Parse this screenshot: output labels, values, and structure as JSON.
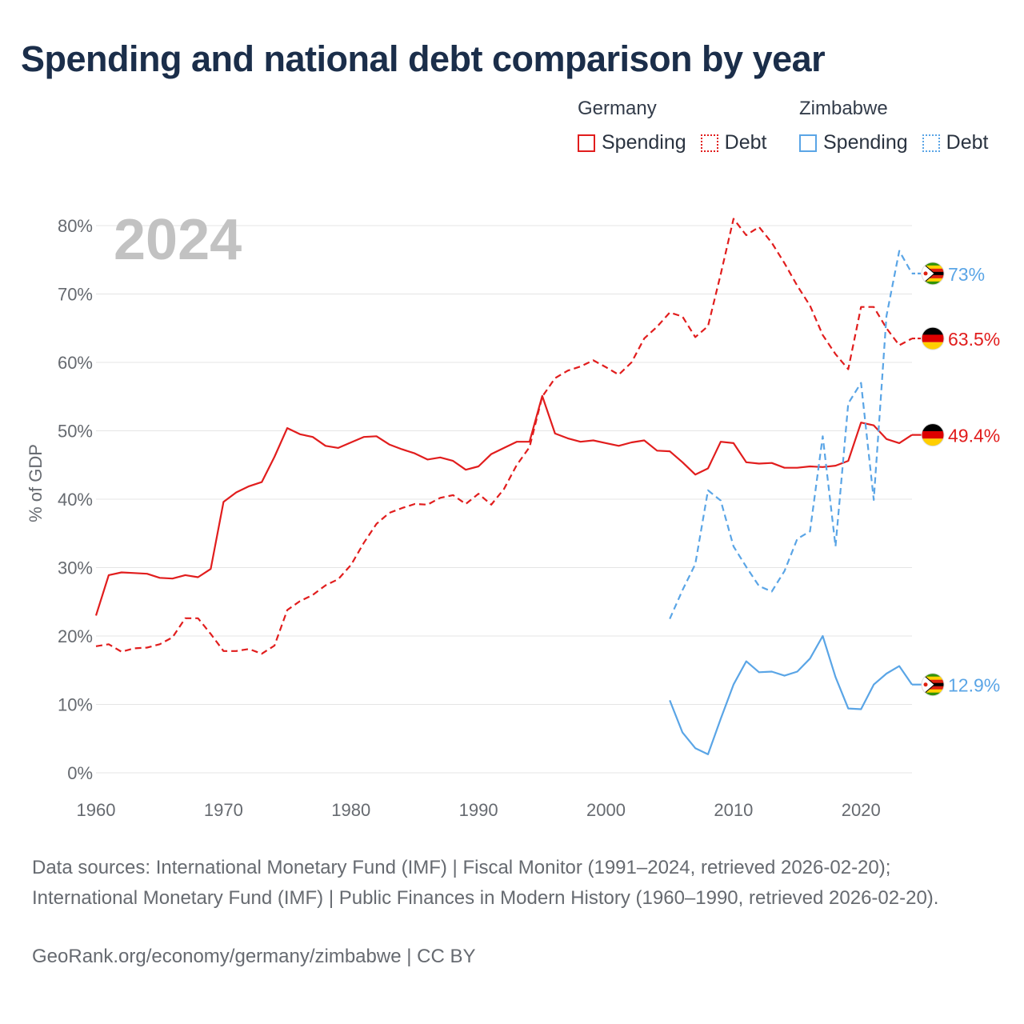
{
  "title": "Spending and national debt comparison by year",
  "legend": {
    "groups": [
      {
        "country": "Germany",
        "items": [
          {
            "label": "Spending",
            "style": "solid"
          },
          {
            "label": "Debt",
            "style": "dotted"
          }
        ],
        "color": "#e11d1d"
      },
      {
        "country": "Zimbabwe",
        "items": [
          {
            "label": "Spending",
            "style": "solid"
          },
          {
            "label": "Debt",
            "style": "dotted"
          }
        ],
        "color": "#5aa5e6"
      }
    ]
  },
  "sources": "Data sources: International Monetary Fund (IMF) | Fiscal Monitor (1991–2024, retrieved 2026-02-20); International Monetary Fund (IMF) | Public Finances in Modern History (1960–1990, retrieved 2026-02-20).",
  "credit": "GeoRank.org/economy/germany/zimbabwe | CC BY",
  "chart_data": {
    "type": "line",
    "year_label": "2024",
    "ylabel": "% of GDP",
    "xlim": [
      1960,
      2024
    ],
    "ylim": [
      0,
      80
    ],
    "x_ticks": [
      1960,
      1970,
      1980,
      1990,
      2000,
      2010,
      2020
    ],
    "y_ticks": [
      0,
      10,
      20,
      30,
      40,
      50,
      60,
      70,
      80
    ],
    "y_tick_labels": [
      "0%",
      "10%",
      "20%",
      "30%",
      "40%",
      "50%",
      "60%",
      "70%",
      "80%"
    ],
    "series": [
      {
        "name": "Germany Spending",
        "country": "Germany",
        "metric": "Spending",
        "color": "#e11d1d",
        "dash": "solid",
        "end_label": "49.4%",
        "flag": "germany",
        "x": [
          1960,
          1961,
          1962,
          1963,
          1964,
          1965,
          1966,
          1967,
          1968,
          1969,
          1970,
          1971,
          1972,
          1973,
          1974,
          1975,
          1976,
          1977,
          1978,
          1979,
          1980,
          1981,
          1982,
          1983,
          1984,
          1985,
          1986,
          1987,
          1988,
          1989,
          1990,
          1991,
          1992,
          1993,
          1994,
          1995,
          1996,
          1997,
          1998,
          1999,
          2000,
          2001,
          2002,
          2003,
          2004,
          2005,
          2006,
          2007,
          2008,
          2009,
          2010,
          2011,
          2012,
          2013,
          2014,
          2015,
          2016,
          2017,
          2018,
          2019,
          2020,
          2021,
          2022,
          2023,
          2024
        ],
        "values": [
          23.0,
          28.9,
          29.3,
          29.2,
          29.1,
          28.5,
          28.4,
          28.9,
          28.6,
          29.8,
          39.6,
          41.0,
          41.9,
          42.5,
          46.2,
          50.4,
          49.5,
          49.1,
          47.8,
          47.5,
          48.3,
          49.1,
          49.2,
          48.0,
          47.3,
          46.7,
          45.8,
          46.1,
          45.6,
          44.3,
          44.8,
          46.6,
          47.5,
          48.4,
          48.4,
          55.1,
          49.6,
          48.9,
          48.4,
          48.6,
          48.2,
          47.8,
          48.3,
          48.6,
          47.1,
          47.0,
          45.4,
          43.6,
          44.5,
          48.4,
          48.2,
          45.4,
          45.2,
          45.3,
          44.6,
          44.6,
          44.8,
          44.7,
          44.9,
          45.6,
          51.2,
          50.8,
          48.8,
          48.2,
          49.4
        ]
      },
      {
        "name": "Germany Debt",
        "country": "Germany",
        "metric": "Debt",
        "color": "#e11d1d",
        "dash": "dashed",
        "end_label": "63.5%",
        "flag": "germany",
        "x": [
          1960,
          1961,
          1962,
          1963,
          1964,
          1965,
          1966,
          1967,
          1968,
          1969,
          1970,
          1971,
          1972,
          1973,
          1974,
          1975,
          1976,
          1977,
          1978,
          1979,
          1980,
          1981,
          1982,
          1983,
          1984,
          1985,
          1986,
          1987,
          1988,
          1989,
          1990,
          1991,
          1992,
          1993,
          1994,
          1995,
          1996,
          1997,
          1998,
          1999,
          2000,
          2001,
          2002,
          2003,
          2004,
          2005,
          2006,
          2007,
          2008,
          2009,
          2010,
          2011,
          2012,
          2013,
          2014,
          2015,
          2016,
          2017,
          2018,
          2019,
          2020,
          2021,
          2022,
          2023,
          2024
        ],
        "values": [
          18.5,
          18.8,
          17.7,
          18.2,
          18.3,
          18.8,
          19.8,
          22.6,
          22.6,
          20.3,
          17.8,
          17.8,
          18.1,
          17.4,
          18.6,
          23.8,
          25.1,
          26.0,
          27.4,
          28.3,
          30.4,
          33.6,
          36.4,
          38.0,
          38.7,
          39.3,
          39.2,
          40.2,
          40.6,
          39.3,
          40.8,
          39.2,
          41.5,
          45.0,
          47.6,
          55.0,
          57.7,
          58.8,
          59.4,
          60.3,
          59.3,
          58.2,
          60.0,
          63.5,
          65.2,
          67.3,
          66.7,
          63.7,
          65.3,
          72.9,
          81.0,
          78.6,
          79.8,
          77.5,
          74.5,
          71.2,
          68.3,
          64.0,
          61.2,
          59.0,
          68.1,
          68.1,
          65.0,
          62.5,
          63.5
        ]
      },
      {
        "name": "Zimbabwe Spending",
        "country": "Zimbabwe",
        "metric": "Spending",
        "color": "#5aa5e6",
        "dash": "solid",
        "end_label": "12.9%",
        "flag": "zimbabwe",
        "x": [
          2005,
          2006,
          2007,
          2008,
          2009,
          2010,
          2011,
          2012,
          2013,
          2014,
          2015,
          2016,
          2017,
          2018,
          2019,
          2020,
          2021,
          2022,
          2023,
          2024
        ],
        "values": [
          10.6,
          5.9,
          3.6,
          2.7,
          7.9,
          12.9,
          16.3,
          14.7,
          14.8,
          14.2,
          14.8,
          16.7,
          20.0,
          14.0,
          9.4,
          9.3,
          12.9,
          14.5,
          15.6,
          12.9
        ]
      },
      {
        "name": "Zimbabwe Debt",
        "country": "Zimbabwe",
        "metric": "Debt",
        "color": "#5aa5e6",
        "dash": "dashed",
        "end_label": "73%",
        "flag": "zimbabwe",
        "x": [
          2005,
          2006,
          2007,
          2008,
          2009,
          2010,
          2011,
          2012,
          2013,
          2014,
          2015,
          2016,
          2017,
          2018,
          2019,
          2020,
          2021,
          2022,
          2023,
          2024
        ],
        "values": [
          22.5,
          26.7,
          30.5,
          41.3,
          39.8,
          33.1,
          30.1,
          27.3,
          26.5,
          29.5,
          34.2,
          35.3,
          49.2,
          33.1,
          54.0,
          57.0,
          39.9,
          66.8,
          76.3,
          73.0
        ]
      }
    ]
  }
}
